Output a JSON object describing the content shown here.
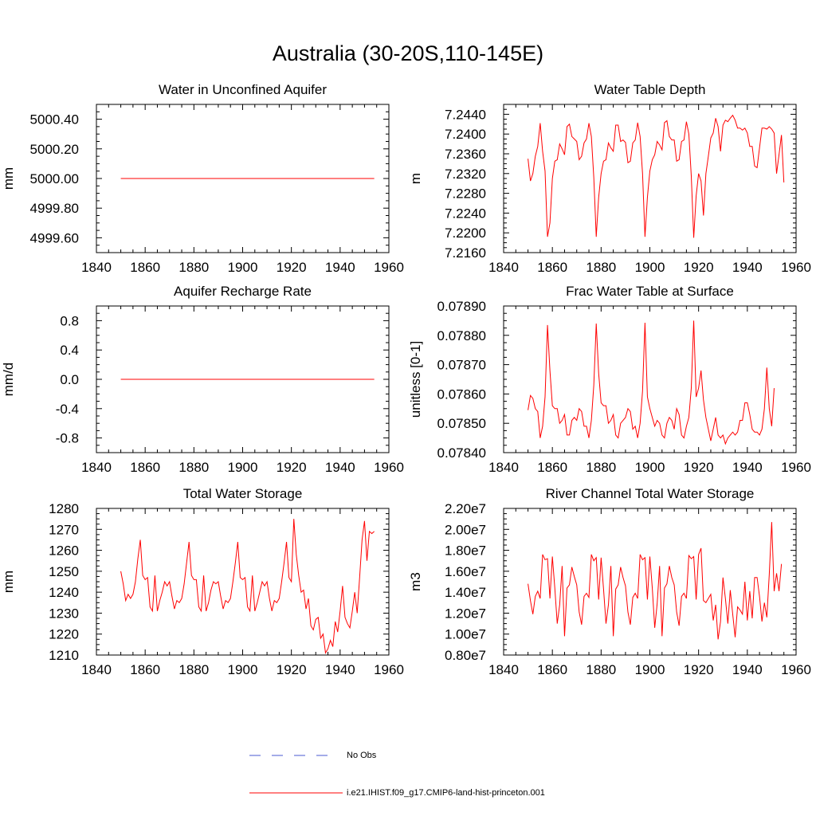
{
  "title": "Australia (30-20S,110-145E)",
  "colors": {
    "model_line": "#ff0000",
    "obs_line": "#4a5ad0",
    "axis": "#000000"
  },
  "legend": {
    "items": [
      {
        "label": "No Obs",
        "style": "dashed",
        "color": "#4a5ad0"
      },
      {
        "label": "i.e21.IHIST.f09_g17.CMIP6-land-hist-princeton.001",
        "style": "solid",
        "color": "#ff0000"
      }
    ]
  },
  "chart_data": [
    {
      "type": "line",
      "title": "Water in Unconfined Aquifer",
      "ylabel": "mm",
      "xlim": [
        1840,
        1960
      ],
      "ylim": [
        4999.5,
        5000.5
      ],
      "xticks": [
        1840,
        1860,
        1880,
        1900,
        1920,
        1940,
        1960
      ],
      "yticks": [
        4999.6,
        4999.8,
        5000.0,
        5000.2,
        5000.4
      ],
      "ytick_labels": [
        "4999.60",
        "4999.80",
        "5000.00",
        "5000.20",
        "5000.40"
      ],
      "series": [
        {
          "x_start": 1850,
          "values": [
            5000,
            5000,
            5000,
            5000,
            5000,
            5000,
            5000,
            5000,
            5000,
            5000,
            5000,
            5000,
            5000,
            5000,
            5000,
            5000,
            5000,
            5000,
            5000,
            5000,
            5000,
            5000,
            5000,
            5000,
            5000,
            5000,
            5000,
            5000,
            5000,
            5000,
            5000,
            5000,
            5000,
            5000,
            5000,
            5000,
            5000,
            5000,
            5000,
            5000,
            5000,
            5000,
            5000,
            5000,
            5000,
            5000,
            5000,
            5000,
            5000,
            5000,
            5000,
            5000,
            5000,
            5000,
            5000,
            5000,
            5000,
            5000,
            5000,
            5000,
            5000,
            5000,
            5000,
            5000,
            5000,
            5000,
            5000,
            5000,
            5000,
            5000,
            5000,
            5000,
            5000,
            5000,
            5000,
            5000,
            5000,
            5000,
            5000,
            5000,
            5000,
            5000,
            5000,
            5000,
            5000,
            5000,
            5000,
            5000,
            5000,
            5000,
            5000,
            5000,
            5000,
            5000,
            5000,
            5000,
            5000,
            5000,
            5000,
            5000,
            5000,
            5000,
            5000,
            5000,
            5000
          ]
        }
      ]
    },
    {
      "type": "line",
      "title": "Water Table Depth",
      "ylabel": "m",
      "xlim": [
        1840,
        1960
      ],
      "ylim": [
        7.216,
        7.246
      ],
      "xticks": [
        1840,
        1860,
        1880,
        1900,
        1920,
        1940,
        1960
      ],
      "yticks": [
        7.216,
        7.22,
        7.224,
        7.228,
        7.232,
        7.236,
        7.24,
        7.244
      ],
      "ytick_labels": [
        "7.2160",
        "7.2200",
        "7.2240",
        "7.2280",
        "7.2320",
        "7.2360",
        "7.2400",
        "7.2440"
      ],
      "series": [
        {
          "x_start": 1850,
          "values": [
            7.235,
            7.2305,
            7.232,
            7.2355,
            7.2375,
            7.2422,
            7.2365,
            7.2325,
            7.2192,
            7.222,
            7.231,
            7.2345,
            7.2348,
            7.238,
            7.237,
            7.2358,
            7.2415,
            7.242,
            7.2395,
            7.239,
            7.2385,
            7.2348,
            7.2355,
            7.2382,
            7.239,
            7.2422,
            7.2395,
            7.2312,
            7.2192,
            7.2272,
            7.232,
            7.2345,
            7.2348,
            7.2382,
            7.2372,
            7.2365,
            7.2418,
            7.2418,
            7.2385,
            7.2388,
            7.2383,
            7.2342,
            7.2345,
            7.2382,
            7.2388,
            7.2423,
            7.2395,
            7.232,
            7.2192,
            7.2272,
            7.2325,
            7.2348,
            7.2358,
            7.2385,
            7.2378,
            7.2368,
            7.2423,
            7.2427,
            7.2395,
            7.2388,
            7.2388,
            7.2345,
            7.2348,
            7.2385,
            7.2388,
            7.2425,
            7.24,
            7.2315,
            7.219,
            7.2275,
            7.232,
            7.2305,
            7.2235,
            7.232,
            7.2355,
            7.2392,
            7.2402,
            7.2432,
            7.2415,
            7.2365,
            7.2418,
            7.2428,
            7.2425,
            7.2432,
            7.2438,
            7.2428,
            7.2412,
            7.2412,
            7.2408,
            7.2412,
            7.2402,
            7.2375,
            7.2375,
            7.2335,
            7.2332,
            7.2372,
            7.2412,
            7.2412,
            7.241,
            7.2415,
            7.241,
            7.2402,
            7.232,
            7.2358,
            7.2398,
            7.2302
          ]
        }
      ]
    },
    {
      "type": "line",
      "title": "Aquifer Recharge Rate",
      "ylabel": "mm/d",
      "xlim": [
        1840,
        1960
      ],
      "ylim": [
        -1.0,
        1.0
      ],
      "xticks": [
        1840,
        1860,
        1880,
        1900,
        1920,
        1940,
        1960
      ],
      "yticks": [
        -0.8,
        -0.4,
        0.0,
        0.4,
        0.8
      ],
      "ytick_labels": [
        "-0.8",
        "-0.4",
        "0.0",
        "0.4",
        "0.8"
      ],
      "series": [
        {
          "x_start": 1850,
          "values": [
            0,
            0,
            0,
            0,
            0,
            0,
            0,
            0,
            0,
            0,
            0,
            0,
            0,
            0,
            0,
            0,
            0,
            0,
            0,
            0,
            0,
            0,
            0,
            0,
            0,
            0,
            0,
            0,
            0,
            0,
            0,
            0,
            0,
            0,
            0,
            0,
            0,
            0,
            0,
            0,
            0,
            0,
            0,
            0,
            0,
            0,
            0,
            0,
            0,
            0,
            0,
            0,
            0,
            0,
            0,
            0,
            0,
            0,
            0,
            0,
            0,
            0,
            0,
            0,
            0,
            0,
            0,
            0,
            0,
            0,
            0,
            0,
            0,
            0,
            0,
            0,
            0,
            0,
            0,
            0,
            0,
            0,
            0,
            0,
            0,
            0,
            0,
            0,
            0,
            0,
            0,
            0,
            0,
            0,
            0,
            0,
            0,
            0,
            0,
            0,
            0,
            0,
            0,
            0,
            0
          ]
        }
      ]
    },
    {
      "type": "line",
      "title": "Frac Water Table at Surface",
      "ylabel": "unitless [0-1]",
      "xlim": [
        1840,
        1960
      ],
      "ylim": [
        0.0784,
        0.0789
      ],
      "xticks": [
        1840,
        1860,
        1880,
        1900,
        1920,
        1940,
        1960
      ],
      "yticks": [
        0.0784,
        0.0785,
        0.0786,
        0.0787,
        0.0788,
        0.0789
      ],
      "ytick_labels": [
        "0.07840",
        "0.07850",
        "0.07860",
        "0.07870",
        "0.07880",
        "0.07890"
      ],
      "series": [
        {
          "x_start": 1850,
          "values": [
            0.078545,
            0.078595,
            0.078585,
            0.07855,
            0.07854,
            0.07845,
            0.07849,
            0.07859,
            0.078835,
            0.07868,
            0.07856,
            0.07855,
            0.07855,
            0.0785,
            0.07851,
            0.07853,
            0.07846,
            0.07846,
            0.07851,
            0.07852,
            0.07851,
            0.07855,
            0.07854,
            0.07849,
            0.07849,
            0.07845,
            0.07851,
            0.07863,
            0.07884,
            0.07867,
            0.07857,
            0.07856,
            0.07856,
            0.0785,
            0.07851,
            0.07853,
            0.07846,
            0.07845,
            0.0785,
            0.07851,
            0.07852,
            0.07855,
            0.07854,
            0.07848,
            0.07849,
            0.07845,
            0.0785,
            0.07861,
            0.078843,
            0.07859,
            0.07855,
            0.07852,
            0.07849,
            0.07851,
            0.0785,
            0.07846,
            0.07845,
            0.0785,
            0.07852,
            0.07851,
            0.07848,
            0.07855,
            0.07853,
            0.07846,
            0.07845,
            0.07849,
            0.07852,
            0.07862,
            0.07885,
            0.07859,
            0.07862,
            0.07868,
            0.07858,
            0.07852,
            0.07848,
            0.07844,
            0.07848,
            0.07852,
            0.07846,
            0.07845,
            0.07846,
            0.07843,
            0.07845,
            0.07846,
            0.07847,
            0.07846,
            0.07847,
            0.07851,
            0.07851,
            0.07857,
            0.07857,
            0.07853,
            0.07848,
            0.07847,
            0.07847,
            0.07846,
            0.07848,
            0.07855,
            0.07869,
            0.07855,
            0.07849,
            0.07862
          ]
        }
      ]
    },
    {
      "type": "line",
      "title": "Total Water Storage",
      "ylabel": "mm",
      "xlim": [
        1840,
        1960
      ],
      "ylim": [
        1210,
        1280
      ],
      "xticks": [
        1840,
        1860,
        1880,
        1900,
        1920,
        1940,
        1960
      ],
      "yticks": [
        1210,
        1220,
        1230,
        1240,
        1250,
        1260,
        1270,
        1280
      ],
      "ytick_labels": [
        "1210",
        "1220",
        "1230",
        "1240",
        "1250",
        "1260",
        "1270",
        "1280"
      ],
      "series": [
        {
          "x_start": 1850,
          "values": [
            1250,
            1244,
            1236,
            1239,
            1237,
            1239,
            1245,
            1256,
            1265,
            1248,
            1246,
            1247,
            1233,
            1231,
            1248,
            1231,
            1236,
            1240,
            1245,
            1243,
            1245,
            1238,
            1232,
            1236,
            1235,
            1237,
            1244,
            1254,
            1264,
            1248,
            1246,
            1246,
            1233,
            1231,
            1248,
            1231,
            1235,
            1241,
            1245,
            1244,
            1245,
            1238,
            1232,
            1236,
            1235,
            1237,
            1245,
            1254,
            1264,
            1247,
            1246,
            1247,
            1233,
            1231,
            1248,
            1231,
            1235,
            1240,
            1245,
            1243,
            1245,
            1237,
            1231,
            1236,
            1235,
            1237,
            1245,
            1254,
            1264,
            1247,
            1245,
            1275,
            1258,
            1248,
            1240,
            1241,
            1232,
            1237,
            1224,
            1222,
            1227,
            1228,
            1218,
            1220,
            1211,
            1213,
            1217,
            1214,
            1226,
            1221,
            1231,
            1243,
            1228,
            1225,
            1223,
            1231,
            1240,
            1230,
            1247,
            1265,
            1274,
            1255,
            1269,
            1268,
            1269
          ]
        }
      ]
    },
    {
      "type": "line",
      "title": "River Channel Total Water Storage",
      "ylabel": "m3",
      "xlim": [
        1840,
        1960
      ],
      "ylim": [
        8000000,
        22000000
      ],
      "xticks": [
        1840,
        1860,
        1880,
        1900,
        1920,
        1940,
        1960
      ],
      "yticks": [
        8000000,
        10000000,
        12000000,
        14000000,
        16000000,
        18000000,
        20000000,
        22000000
      ],
      "ytick_labels": [
        "0.80e7",
        "1.00e7",
        "1.20e7",
        "1.40e7",
        "1.60e7",
        "1.80e7",
        "2.00e7",
        "2.20e7"
      ],
      "series": [
        {
          "x_start": 1850,
          "values": [
            14800000,
            13200000,
            11900000,
            13600000,
            14100000,
            13400000,
            17600000,
            17100000,
            17200000,
            13400000,
            17400000,
            14400000,
            11000000,
            12800000,
            16500000,
            9800000,
            14400000,
            14700000,
            16400000,
            15500000,
            14700000,
            12100000,
            10900000,
            13600000,
            13900000,
            13500000,
            17600000,
            17000000,
            17300000,
            13300000,
            17300000,
            14300000,
            11000000,
            12800000,
            16500000,
            9800000,
            14300000,
            14700000,
            16400000,
            15400000,
            14600000,
            12100000,
            10900000,
            13500000,
            13900000,
            13400000,
            17600000,
            17100000,
            17300000,
            13300000,
            17400000,
            14400000,
            10600000,
            12900000,
            16500000,
            9800000,
            14400000,
            14800000,
            16500000,
            15400000,
            14700000,
            12100000,
            10800000,
            13600000,
            13900000,
            13400000,
            17500000,
            17200000,
            17400000,
            13300000,
            17600000,
            18200000,
            13200000,
            13000000,
            13400000,
            13800000,
            11300000,
            12800000,
            9500000,
            11200000,
            15400000,
            13400000,
            11000000,
            14200000,
            11900000,
            9700000,
            12600000,
            12300000,
            11900000,
            15000000,
            11300000,
            14100000,
            11500000,
            15400000,
            15400000,
            13600000,
            11200000,
            13000000,
            11600000,
            15700000,
            20700000,
            14100000,
            15800000,
            14100000,
            16700000
          ]
        }
      ]
    }
  ]
}
